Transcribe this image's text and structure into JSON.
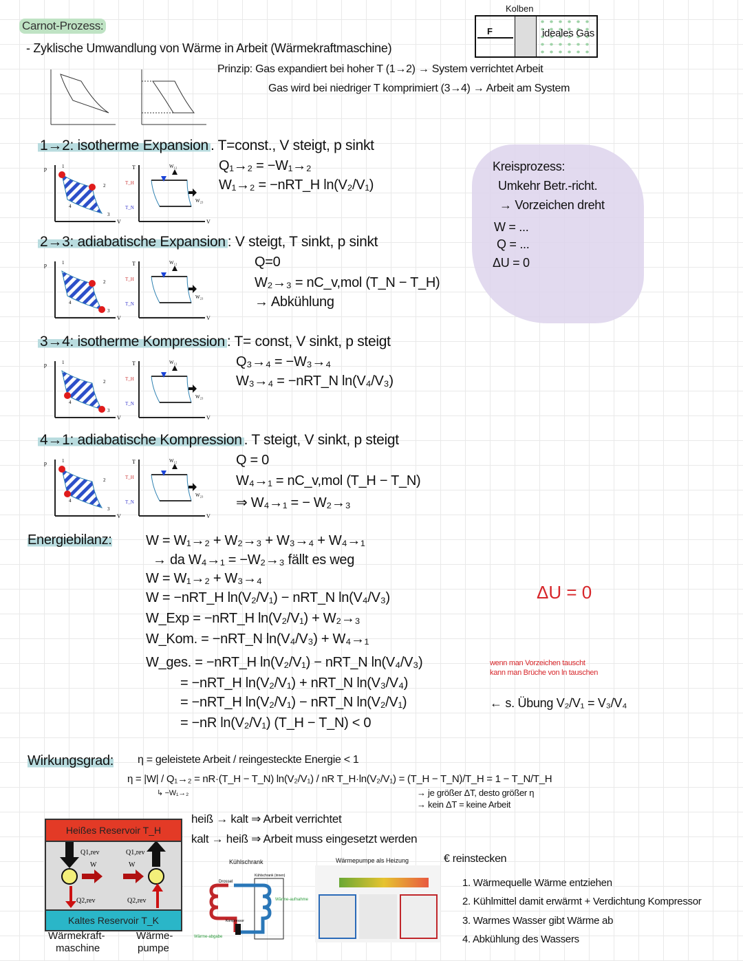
{
  "title": "Carnot-Prozess:",
  "intro": "- Zyklische Umwandlung von Wärme in Arbeit (Wärmekraftmaschine)",
  "kolben": {
    "label": "Kolben",
    "force": "F",
    "gas": "ideales Gas"
  },
  "prinzip": [
    "Prinzip: Gas expandiert bei hoher T (1→2) → System verrichtet Arbeit",
    "Gas wird bei niedriger T komprimiert (3→4) → Arbeit am System"
  ],
  "axes": {
    "p": "p",
    "t": "T",
    "v": "V",
    "th": "T_H",
    "tn": "T_N"
  },
  "steps": [
    {
      "heading": "1→2: isotherme Expansion",
      "cond": ". T=const., V steigt, p sinkt",
      "formulas": [
        "Q₁→₂ = −W₁→₂",
        "W₁→₂ = −nRT_H ln(V₂/V₁)"
      ]
    },
    {
      "heading": "2→3: adiabatische Expansion",
      "cond": ": V steigt, T sinkt, p sinkt",
      "formulas": [
        "Q=0",
        "W₂→₃ = nC_v,mol (T_N − T_H)",
        "→ Abkühlung"
      ]
    },
    {
      "heading": "3→4: isotherme Kompression",
      "cond": ": T= const, V sinkt, p steigt",
      "formulas": [
        "Q₃→₄ = −W₃→₄",
        "W₃→₄ = −nRT_N ln(V₄/V₃)"
      ]
    },
    {
      "heading": "4→1: adiabatische Kompression",
      "cond": ". T steigt, V sinkt, p steigt",
      "formulas": [
        "Q = 0",
        "W₄→₁ = nC_v,mol (T_H − T_N)",
        "⇒ W₄→₁ = − W₂→₃"
      ]
    }
  ],
  "kreisprozess": [
    "Kreisprozess:",
    "Umkehr Betr.-richt.",
    "→ Vorzeichen dreht",
    "W = ...",
    "Q = ...",
    "ΔU = 0"
  ],
  "energiebilanz": {
    "label": "Energiebilanz:",
    "lines": [
      "W = W₁→₂ + W₂→₃ + W₃→₄ + W₄→₁",
      "→ da W₄→₁ = −W₂→₃ fällt es weg",
      "W = W₁→₂ + W₃→₄",
      "W = −nRT_H ln(V₂/V₁) − nRT_N ln(V₄/V₃)",
      "W_Exp = −nRT_H ln(V₂/V₁) + W₂→₃",
      "W_Kom. = −nRT_N ln(V₄/V₃) + W₄→₁",
      "W_ges. = −nRT_H ln(V₂/V₁) − nRT_N ln(V₄/V₃)",
      "= −nRT_H ln(V₂/V₁) + nRT_N ln(V₃/V₄)",
      "= −nRT_H ln(V₂/V₁) − nRT_N ln(V₂/V₁)",
      "= −nR ln(V₂/V₁) (T_H − T_N) < 0"
    ],
    "note": [
      "wenn man Vorzeichen tauscht",
      "kann man Brüche von ln tauschen"
    ],
    "uebung": "← s. Übung  V₂/V₁ = V₃/V₄",
    "delta_u": "ΔU = 0"
  },
  "wirkungsgrad": {
    "label": "Wirkungsgrad:",
    "line1": "η = geleistete Arbeit / reingesteckte Energie < 1",
    "line2": "η = |W| / Q₁→₂ = nR·(T_H − T_N) ln(V₂/V₁) / nR T_H·ln(V₂/V₁) = (T_H − T_N)/T_H = 1 − T_N/T_H",
    "sub": "↳ −W₁→₂",
    "notes": [
      "→ je größer ΔT, desto größer η",
      "→ kein ΔT = keine Arbeit"
    ]
  },
  "reservoir": {
    "hot": "Heißes Reservoir T_H",
    "cold": "Kaltes Reservoir T_K",
    "q1": "Q1,rev",
    "q2": "Q2,rev",
    "w": "W",
    "left": "Wärmekraft-\nmaschine",
    "right": "Wärme-\npumpe",
    "left1": "Wärmekraft-",
    "left2": "maschine",
    "right1": "Wärme-",
    "right2": "pumpe"
  },
  "statements": [
    "heiß → kalt ⇒ Arbeit verrichtet",
    "kalt → heiß ⇒ Arbeit muss eingesetzt werden"
  ],
  "kuehlschrank": {
    "title": "Kühlschrank",
    "drossel": "Drossel",
    "innen": "Kühlschrank (innen)",
    "kompressor": "Kompressor",
    "abgabe": "Wärme-abgabe",
    "aufnahme": "Wärme-aufnahme"
  },
  "waermepumpe": {
    "title": "Wärmepumpe als Heizung"
  },
  "euro": "€ reinstecken",
  "pump_steps": [
    "1. Wärmequelle Wärme entziehen",
    "2. Kühlmittel damit erwärmt + Verdichtung Kompressor",
    "3. Warmes Wasser gibt Wärme ab",
    "4. Abkühlung des Wassers"
  ],
  "colors": {
    "red": "#d7262a",
    "blue": "#1e7fd8",
    "green_highlight": "#bfe3c4",
    "teal_highlight": "#b9dcdf",
    "purple_blob": "#ddd3ec",
    "hot": "#e33a26",
    "cold": "#2ab6c8"
  }
}
